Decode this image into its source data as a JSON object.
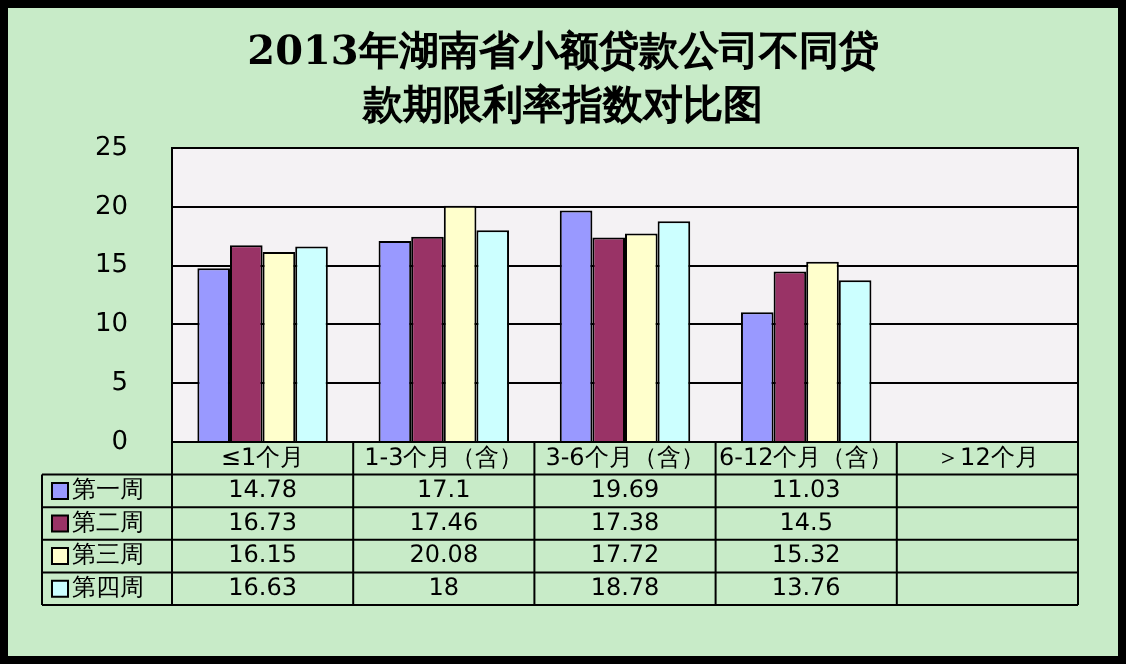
{
  "chart_data": {
    "type": "bar",
    "title": "2013年湖南省小额贷款公司不同贷款期限利率指数对比图",
    "categories": [
      "≤1个月",
      "1-3个月（含）",
      "3-6个月（含）",
      "6-12个月（含）",
      "＞12个月"
    ],
    "series": [
      {
        "name": "第一周",
        "color": "#9999ff",
        "values": [
          14.78,
          17.1,
          19.69,
          11.03,
          null
        ]
      },
      {
        "name": "第二周",
        "color": "#993366",
        "values": [
          16.73,
          17.46,
          17.38,
          14.5,
          null
        ]
      },
      {
        "name": "第三周",
        "color": "#ffffcc",
        "values": [
          16.15,
          20.08,
          17.72,
          15.32,
          null
        ]
      },
      {
        "name": "第四周",
        "color": "#ccffff",
        "values": [
          16.63,
          18,
          18.78,
          13.76,
          null
        ]
      }
    ],
    "ylim": [
      0,
      25
    ],
    "yticks": [
      0,
      5,
      10,
      15,
      20,
      25
    ],
    "grid": "y",
    "legend": "bottom",
    "data_labels": true
  }
}
